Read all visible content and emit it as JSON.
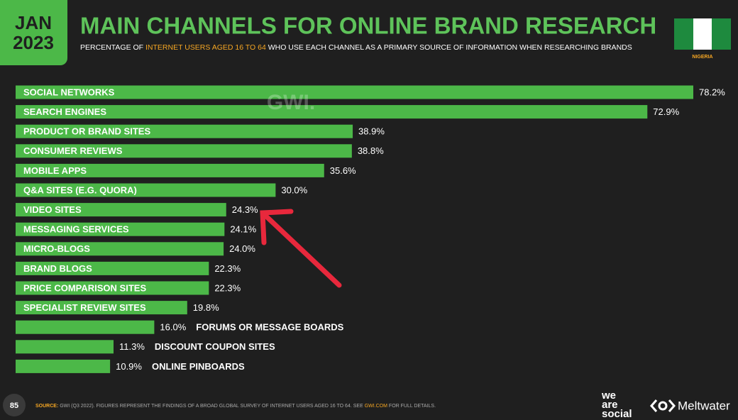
{
  "chart_data": {
    "type": "bar",
    "title": "MAIN CHANNELS FOR ONLINE BRAND RESEARCH",
    "subtitle": [
      "PERCENTAGE OF ",
      "INTERNET USERS AGED 16 TO 64",
      " WHO USE EACH CHANNEL AS A PRIMARY SOURCE OF INFORMATION WHEN RESEARCHING BRANDS"
    ],
    "categories": [
      "SOCIAL NETWORKS",
      "SEARCH ENGINES",
      "PRODUCT OR BRAND SITES",
      "CONSUMER REVIEWS",
      "MOBILE APPS",
      "Q&A SITES (E.G. QUORA)",
      "VIDEO SITES",
      "MESSAGING SERVICES",
      "MICRO-BLOGS",
      "BRAND BLOGS",
      "PRICE COMPARISON SITES",
      "SPECIALIST REVIEW SITES",
      "FORUMS OR MESSAGE BOARDS",
      "DISCOUNT COUPON SITES",
      "ONLINE PINBOARDS"
    ],
    "values": [
      78.2,
      72.9,
      38.9,
      38.8,
      35.6,
      30.0,
      24.3,
      24.1,
      24.0,
      22.3,
      22.3,
      19.8,
      16.0,
      11.3,
      10.9
    ],
    "value_labels": [
      "78.2%",
      "72.9%",
      "38.9%",
      "38.8%",
      "35.6%",
      "30.0%",
      "24.3%",
      "24.1%",
      "24.0%",
      "22.3%",
      "22.3%",
      "19.8%",
      "16.0%",
      "11.3%",
      "10.9%"
    ],
    "color": "#4cb848"
  },
  "slide": {
    "month": "JAN",
    "year": "2023",
    "country": "NIGERIA",
    "watermark": "GWI.",
    "page_number": "85",
    "source_label": "SOURCE:",
    "source_text": " GWI (Q3 2022). FIGURES REPRESENT THE FINDINGS OF A BROAD GLOBAL SURVEY OF INTERNET USERS AGED 16 TO 64. SEE ",
    "source_link": "GWI.COM",
    "source_tail": " FOR FULL DETAILS.",
    "brand_1": [
      "we",
      "are",
      "social"
    ],
    "brand_2": "Meltwater"
  }
}
